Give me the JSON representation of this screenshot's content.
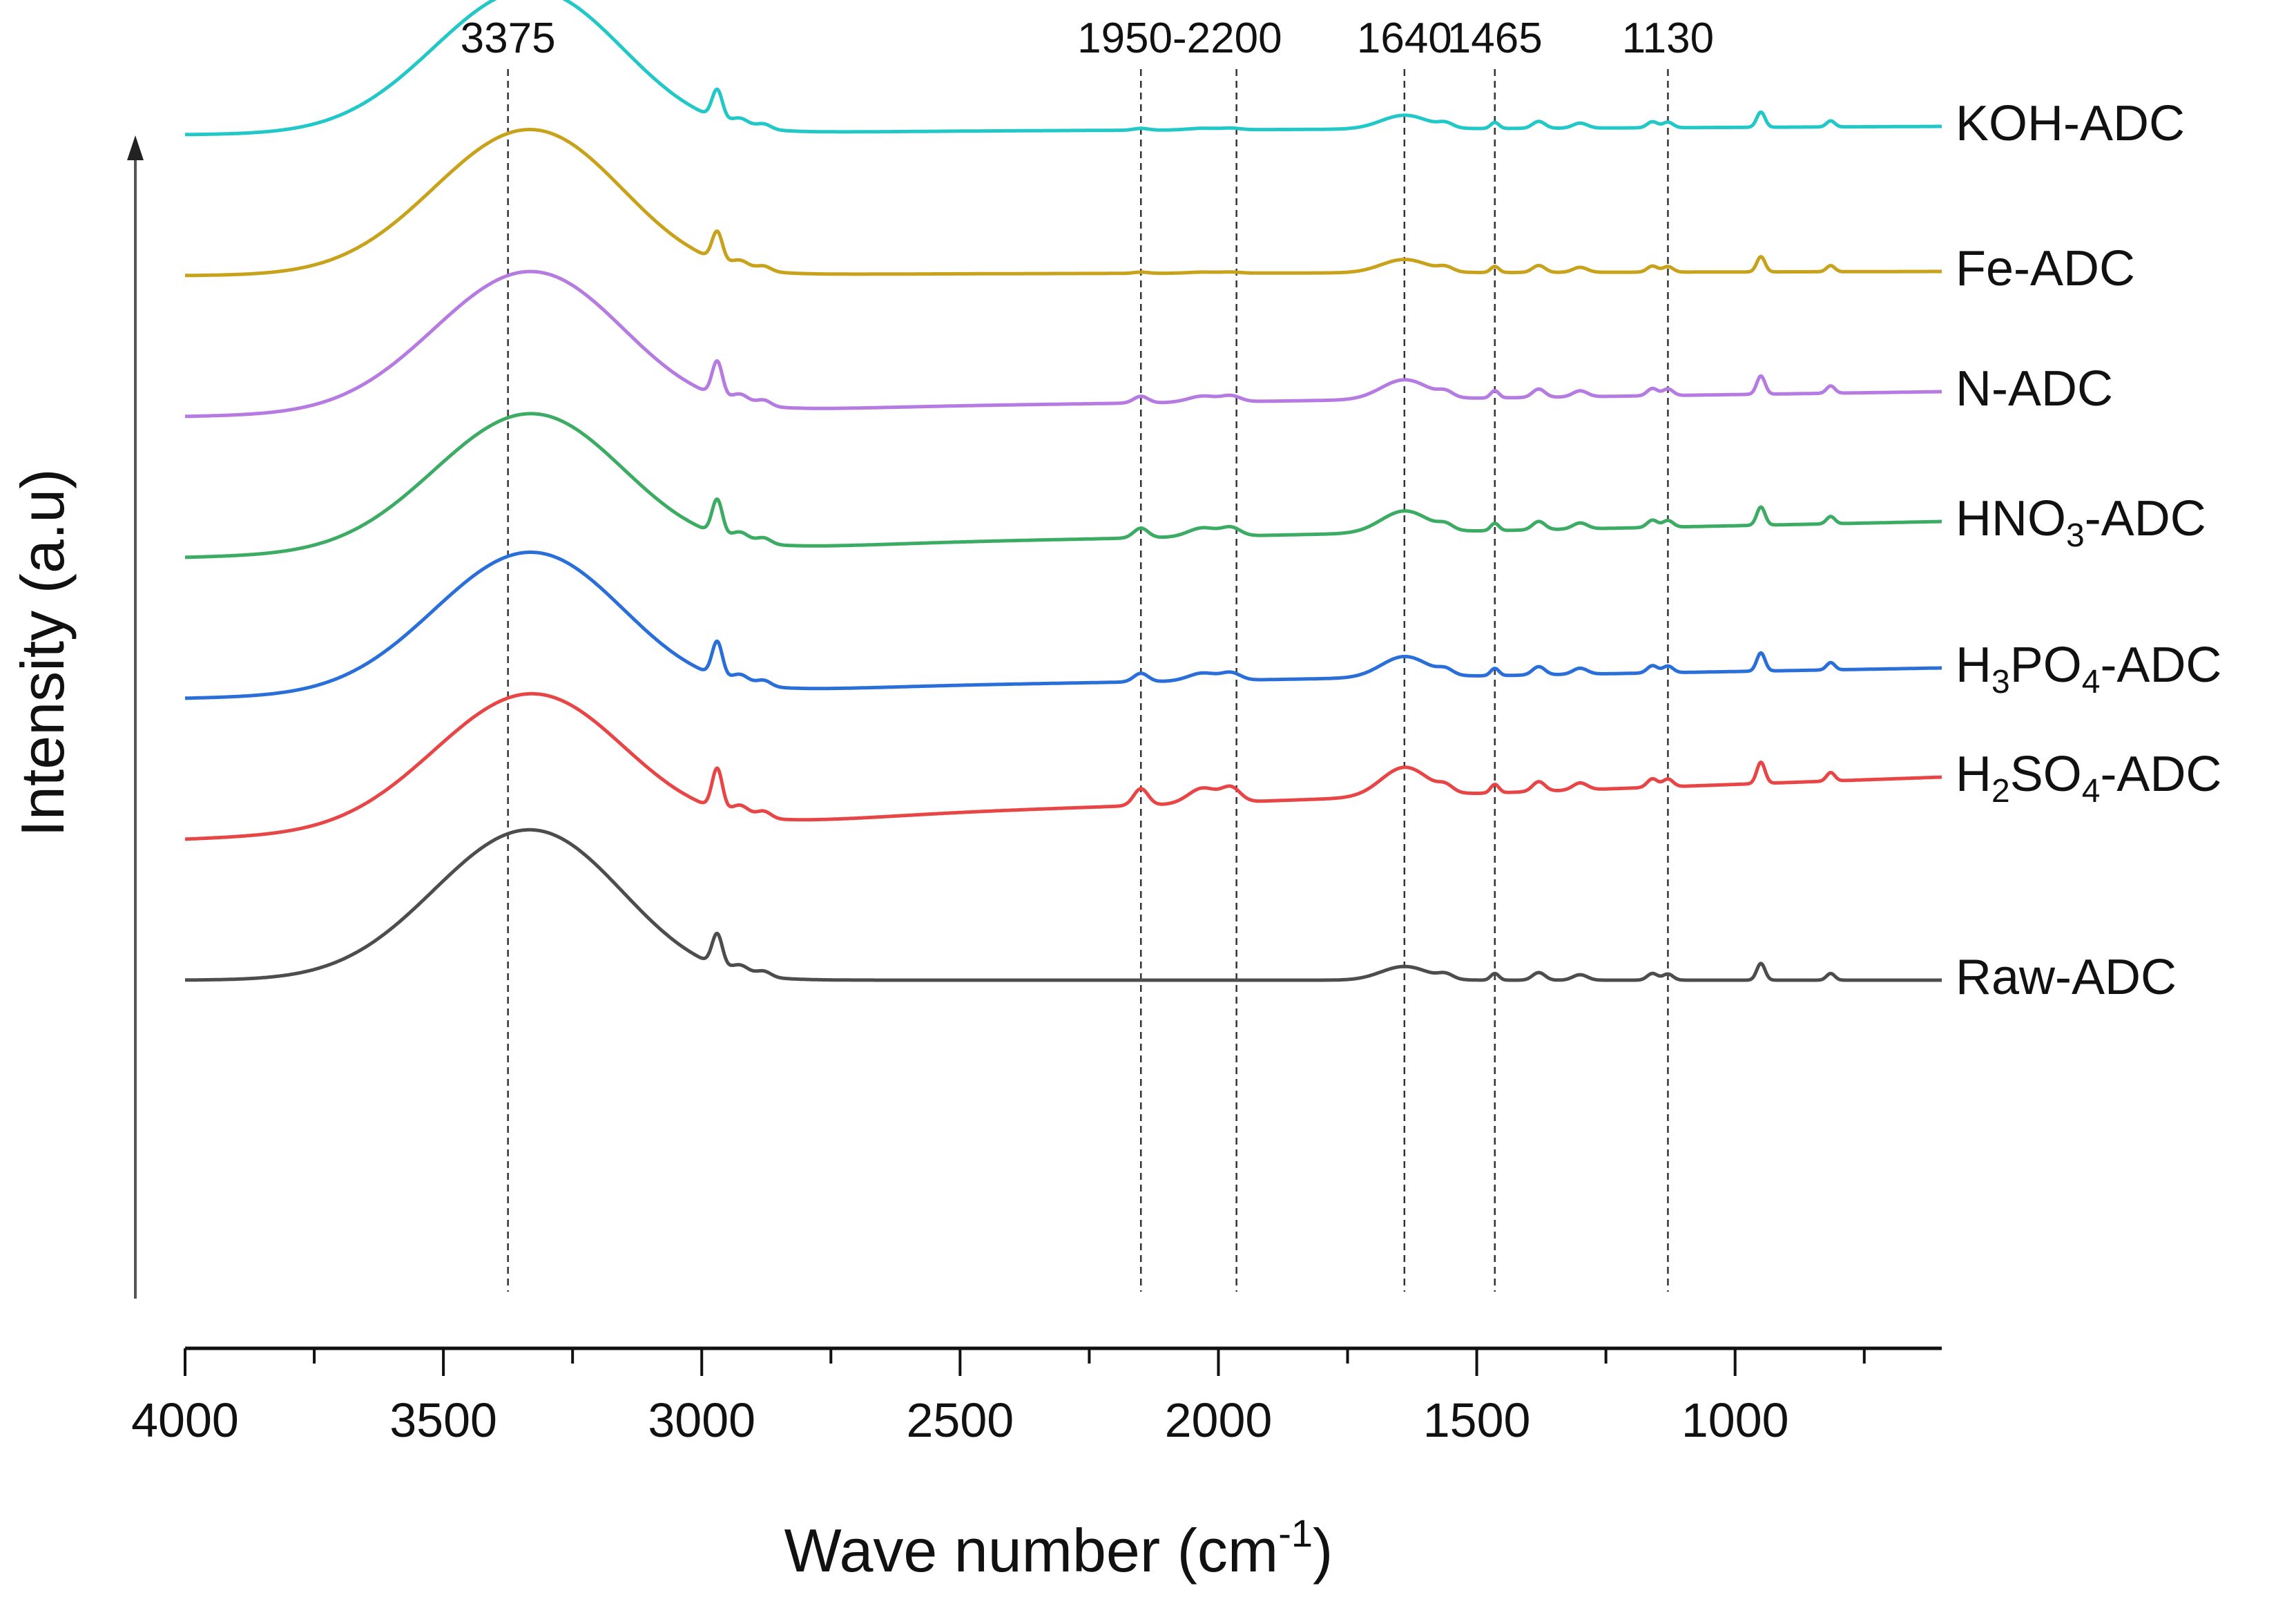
{
  "chart_data": {
    "type": "line",
    "title": "",
    "xlabel": "Wave number (cm",
    "xlabel_sup": "-1",
    "xlabel_end": ")",
    "ylabel": "Intensity (a.u)",
    "xlim": [
      4000,
      600
    ],
    "x_ticks": [
      4000,
      3500,
      3000,
      2500,
      2000,
      1500,
      1000
    ],
    "x_tick_labels": [
      "4000",
      "3500",
      "3000",
      "2500",
      "2000",
      "1500",
      "1000"
    ],
    "x_minor_step": 250,
    "y_ticks_shown": false,
    "stacked_offset_display": true,
    "reference_lines": [
      3375,
      2150,
      1965,
      1640,
      1465,
      1130
    ],
    "annotations": [
      {
        "text": "3375",
        "x": 3375
      },
      {
        "text": "1950-2200",
        "x": 2075
      },
      {
        "text": "1640",
        "x": 1640
      },
      {
        "text": "1465",
        "x": 1465
      },
      {
        "text": "1130",
        "x": 1130
      }
    ],
    "series": [
      {
        "name": "KOH-ADC",
        "label_main": "KOH-ADC",
        "label_parts": [],
        "color": "#22c7c7",
        "offset": 5,
        "variant": "koh"
      },
      {
        "name": "Fe-ADC",
        "label_main": "Fe-ADC",
        "label_parts": [],
        "color": "#c9a21b",
        "offset": 4,
        "variant": "fe"
      },
      {
        "name": "N-ADC",
        "label_main": "N-ADC",
        "label_parts": [],
        "color": "#b57be0",
        "offset": 3,
        "variant": "n"
      },
      {
        "name": "HNO3-ADC",
        "label_main": "",
        "label_parts": [
          {
            "t": "HNO",
            "sub": false
          },
          {
            "t": "3",
            "sub": true
          },
          {
            "t": "-ADC",
            "sub": false
          }
        ],
        "color": "#3cab63",
        "offset": 2,
        "variant": "hno3"
      },
      {
        "name": "H3PO4-ADC",
        "label_main": "",
        "label_parts": [
          {
            "t": "H",
            "sub": false
          },
          {
            "t": "3",
            "sub": true
          },
          {
            "t": "PO",
            "sub": false
          },
          {
            "t": "4",
            "sub": true
          },
          {
            "t": "-ADC",
            "sub": false
          }
        ],
        "color": "#2a6fd9",
        "offset": 1,
        "variant": "h3po4"
      },
      {
        "name": "H2SO4-ADC",
        "label_main": "",
        "label_parts": [
          {
            "t": "H",
            "sub": false
          },
          {
            "t": "2",
            "sub": true
          },
          {
            "t": "SO",
            "sub": false
          },
          {
            "t": "4",
            "sub": true
          },
          {
            "t": "-ADC",
            "sub": false
          }
        ],
        "color": "#e84646",
        "offset": 0,
        "variant": "h2so4"
      },
      {
        "name": "Raw-ADC",
        "label_main": "Raw-ADC",
        "label_parts": [],
        "color": "#4d4d4d",
        "offset": -1,
        "variant": "raw"
      }
    ]
  }
}
